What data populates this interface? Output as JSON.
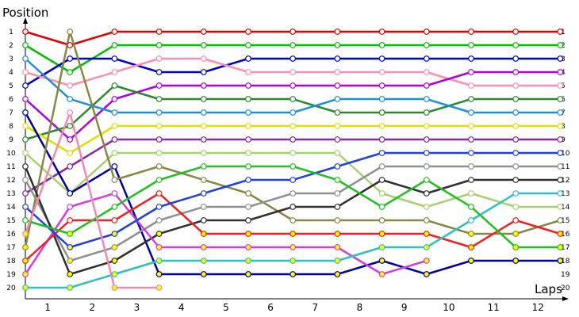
{
  "chart_data": {
    "type": "line",
    "ylabel": "Position",
    "xlabel": "Laps",
    "y_ticks_left": [
      1,
      2,
      3,
      4,
      5,
      6,
      7,
      8,
      9,
      10,
      11,
      12,
      13,
      14,
      15,
      16,
      17,
      18,
      19,
      20
    ],
    "y_ticks_right": [
      1,
      2,
      3,
      4,
      5,
      6,
      7,
      8,
      9,
      10,
      11,
      12,
      13,
      14,
      15,
      16,
      17,
      18,
      19,
      20
    ],
    "x_ticks": [
      1,
      2,
      3,
      4,
      5,
      6,
      7,
      8,
      9,
      10,
      11,
      12
    ],
    "ylim": [
      1,
      20
    ],
    "y_inverted": true,
    "x": [
      0,
      1,
      2,
      3,
      4,
      5,
      6,
      7,
      8,
      9,
      10,
      11,
      12
    ],
    "grid": false,
    "marker_colors": {
      "white": "#ffffff",
      "yellow": "#ffff00"
    },
    "series": [
      {
        "color": "#e00000",
        "values": [
          1,
          2,
          1,
          1,
          1,
          1,
          1,
          1,
          1,
          1,
          1,
          1,
          1
        ]
      },
      {
        "color": "#00c000",
        "values": [
          2,
          4,
          2,
          2,
          2,
          2,
          2,
          2,
          2,
          2,
          2,
          2,
          2
        ]
      },
      {
        "color": "#0000cc",
        "values": [
          5,
          3,
          3,
          4,
          4,
          3,
          3,
          3,
          3,
          3,
          3,
          3,
          3
        ]
      },
      {
        "color": "#ff8fb0",
        "values": [
          4,
          5,
          4,
          3,
          3,
          4,
          4,
          4,
          4,
          4,
          5,
          5,
          5
        ]
      },
      {
        "color": "#b000e0",
        "values": [
          6,
          9,
          6,
          5,
          5,
          5,
          5,
          5,
          5,
          5,
          4,
          4,
          4
        ]
      },
      {
        "color": "#2a8a2a",
        "values": [
          9,
          8,
          5,
          6,
          6,
          6,
          6,
          7,
          7,
          7,
          6,
          6,
          6
        ]
      },
      {
        "color": "#1a8fe0",
        "values": [
          3,
          6,
          7,
          7,
          7,
          7,
          7,
          6,
          6,
          6,
          7,
          7,
          7
        ]
      },
      {
        "color": "#e0e000",
        "values": [
          8,
          10,
          8,
          8,
          8,
          8,
          8,
          8,
          8,
          8,
          8,
          8,
          8
        ]
      },
      {
        "color": "#8a2aa0",
        "values": [
          13,
          11,
          9,
          9,
          9,
          9,
          9,
          9,
          9,
          9,
          9,
          9,
          9
        ]
      },
      {
        "color": "#a8d070",
        "values": [
          10,
          13,
          10,
          10,
          10,
          10,
          10,
          10,
          13,
          14,
          13,
          14,
          14
        ]
      },
      {
        "color": "#0000a0",
        "values": [
          7,
          13,
          11,
          19,
          19,
          19,
          19,
          19,
          18,
          19,
          18,
          18,
          18
        ]
      },
      {
        "color": "#888844",
        "values": [
          17,
          1,
          12,
          11,
          12,
          13,
          15,
          15,
          15,
          15,
          16,
          16,
          15
        ]
      },
      {
        "color": "#909090",
        "values": [
          12,
          18,
          17,
          15,
          14,
          14,
          13,
          13,
          11,
          11,
          11,
          11,
          11
        ]
      },
      {
        "color": "#303030",
        "values": [
          11,
          19,
          18,
          16,
          15,
          15,
          14,
          14,
          12,
          13,
          12,
          12,
          12
        ]
      },
      {
        "color": "#d040e0",
        "values": [
          19,
          14,
          13,
          17,
          17,
          17,
          17,
          17,
          19,
          18,
          null,
          null,
          null
        ]
      },
      {
        "color": "#f02020",
        "values": [
          18,
          15,
          15,
          13,
          16,
          16,
          16,
          16,
          16,
          16,
          17,
          15,
          16
        ]
      },
      {
        "color": "#2040e0",
        "values": [
          14,
          17,
          16,
          14,
          13,
          12,
          12,
          11,
          10,
          10,
          10,
          10,
          10
        ]
      },
      {
        "color": "#30c0c0",
        "values": [
          20,
          20,
          19,
          18,
          18,
          18,
          18,
          18,
          17,
          17,
          15,
          13,
          13
        ]
      },
      {
        "color": "#20c020",
        "values": [
          15,
          16,
          14,
          12,
          11,
          11,
          11,
          12,
          14,
          12,
          14,
          17,
          17
        ]
      },
      {
        "color": "#f08ab0",
        "values": [
          16,
          7,
          20,
          20,
          null,
          null,
          null,
          null,
          null,
          null,
          null,
          null,
          null
        ]
      }
    ]
  }
}
